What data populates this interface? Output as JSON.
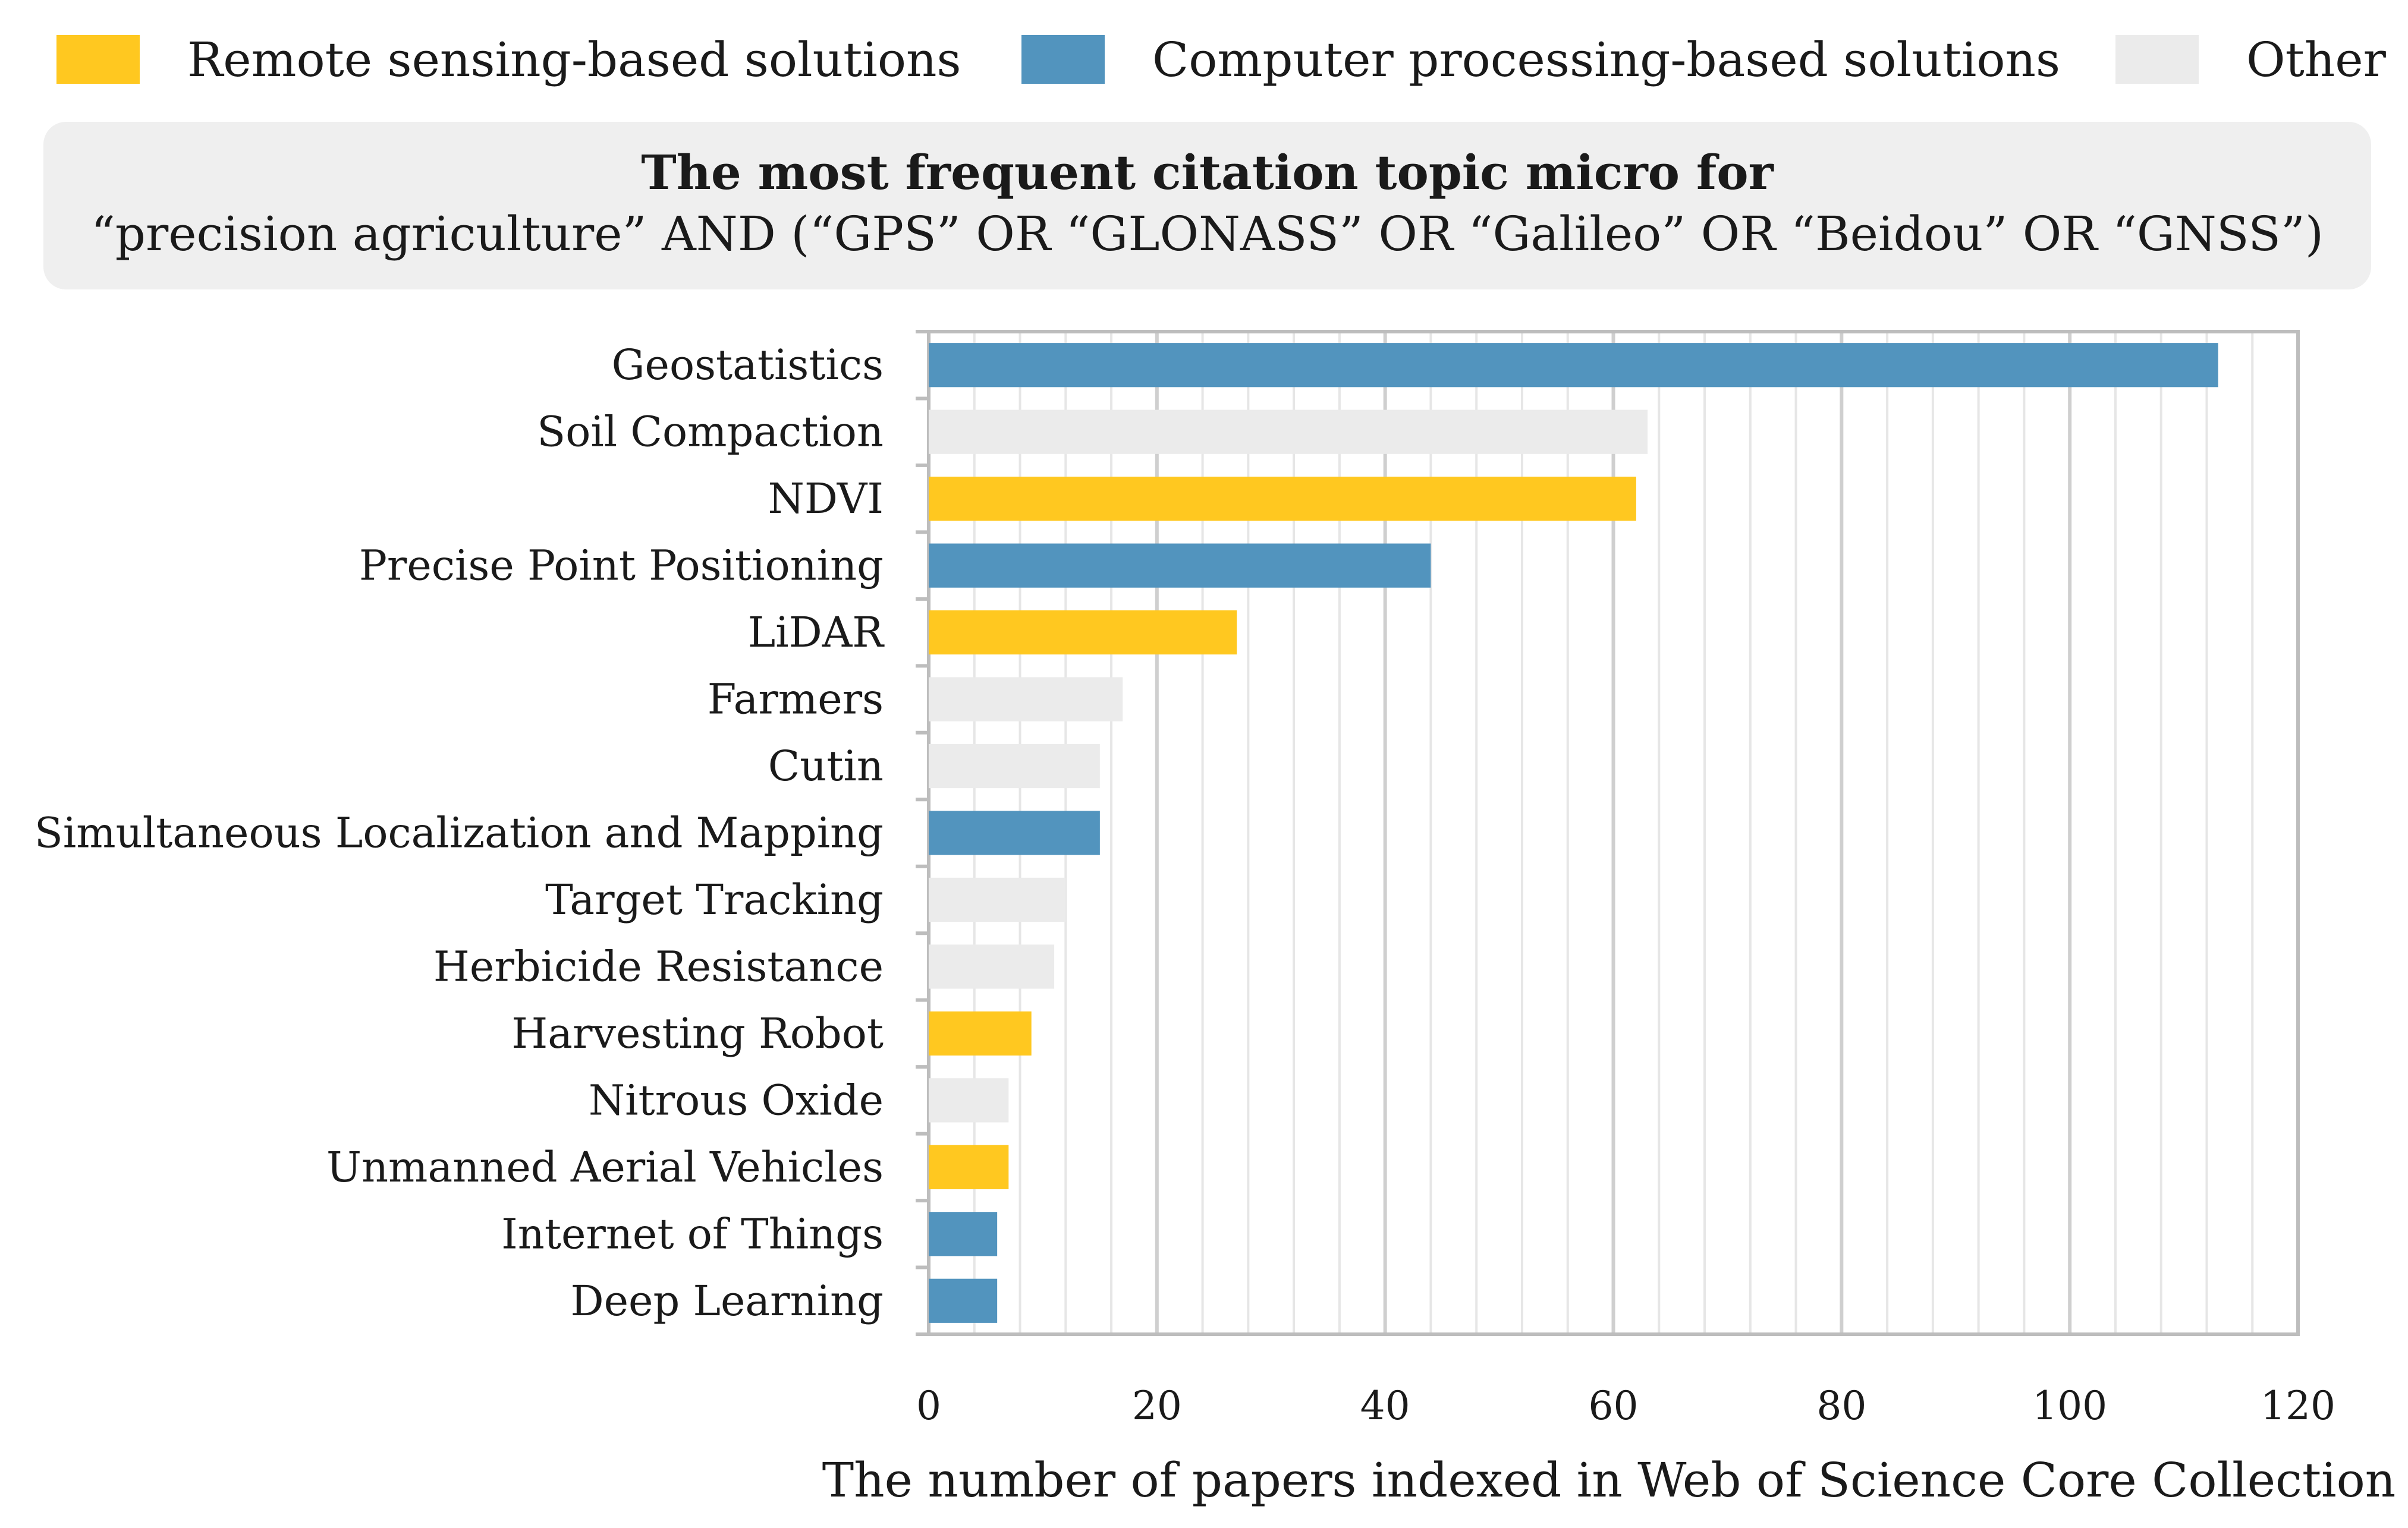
{
  "legend": [
    {
      "label": "Remote sensing-based solutions",
      "color": "#FFC820"
    },
    {
      "label": "Computer processing-based solutions",
      "color": "#5294BE"
    },
    {
      "label": "Other",
      "color": "#EBEBEB"
    }
  ],
  "title": {
    "line1": "The most frequent citation topic micro for",
    "line2": "“precision agriculture” AND (“GPS” OR “GLONASS” OR “Galileo” OR “Beidou” OR “GNSS”)"
  },
  "chart_data": {
    "type": "bar",
    "orientation": "horizontal",
    "title": "The most frequent citation topic micro for “precision agriculture” AND (“GPS” OR “GLONASS” OR “Galileo” OR “Beidou” OR “GNSS”)",
    "xlabel": "The number of papers indexed in Web of Science Core Collection",
    "ylabel": "",
    "xlim": [
      0,
      120
    ],
    "xticks": [
      0,
      20,
      40,
      60,
      80,
      100,
      120
    ],
    "grid": true,
    "legend_position": "top",
    "categories": [
      "Geostatistics",
      "Soil Compaction",
      "NDVI",
      "Precise Point Positioning",
      "LiDAR",
      "Farmers",
      "Cutin",
      "Simultaneous Localization and Mapping",
      "Target Tracking",
      "Herbicide Resistance",
      "Harvesting Robot",
      "Nitrous Oxide",
      "Unmanned Aerial Vehicles",
      "Internet of Things",
      "Deep Learning"
    ],
    "values": [
      113,
      63,
      62,
      44,
      27,
      17,
      15,
      15,
      12,
      11,
      9,
      7,
      7,
      6,
      6
    ],
    "groups": [
      "Computer processing-based solutions",
      "Other",
      "Remote sensing-based solutions",
      "Computer processing-based solutions",
      "Remote sensing-based solutions",
      "Other",
      "Other",
      "Computer processing-based solutions",
      "Other",
      "Other",
      "Remote sensing-based solutions",
      "Other",
      "Remote sensing-based solutions",
      "Computer processing-based solutions",
      "Computer processing-based solutions"
    ]
  }
}
